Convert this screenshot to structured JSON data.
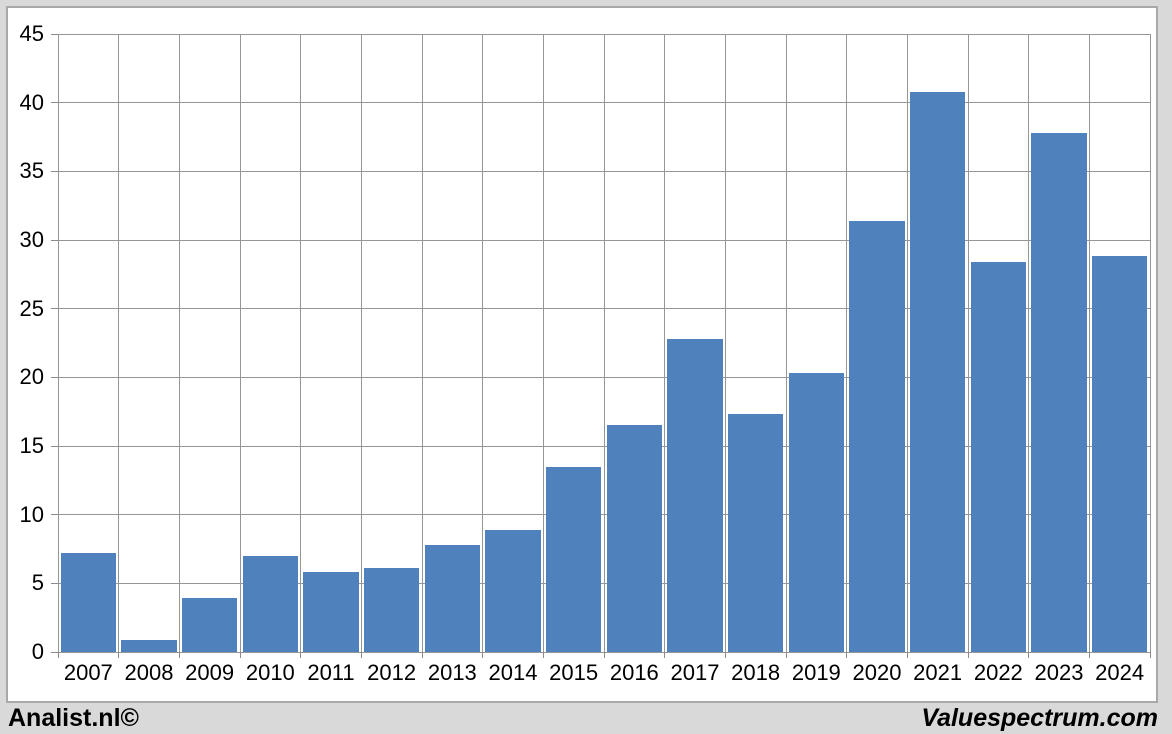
{
  "chart_data": {
    "type": "bar",
    "categories": [
      "2007",
      "2008",
      "2009",
      "2010",
      "2011",
      "2012",
      "2013",
      "2014",
      "2015",
      "2016",
      "2017",
      "2018",
      "2019",
      "2020",
      "2021",
      "2022",
      "2023",
      "2024"
    ],
    "values": [
      7.2,
      0.9,
      3.9,
      7.0,
      5.8,
      6.1,
      7.8,
      8.9,
      13.5,
      16.5,
      22.8,
      17.3,
      20.3,
      31.4,
      40.8,
      28.4,
      37.8,
      28.8
    ],
    "title": "",
    "xlabel": "",
    "ylabel": "",
    "ylim": [
      0,
      45
    ],
    "yticks": [
      0,
      5,
      10,
      15,
      20,
      25,
      30,
      35,
      40,
      45
    ],
    "grid": true,
    "legend": "none",
    "colors": {
      "bar": "#4f81bd",
      "gridline": "#969696",
      "axis": "#8a8a8a",
      "plot_background": "#ffffff",
      "frame_background": "#d9d9d9",
      "panel_border": "#a9a9a9",
      "label_text": "#000000"
    }
  },
  "footer": {
    "left_label": "Analist.nl©",
    "right_label": "Valuespectrum.com"
  }
}
